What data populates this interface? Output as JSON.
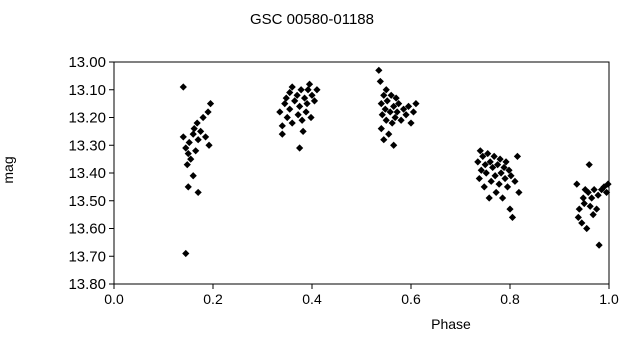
{
  "chart_data": {
    "type": "scatter",
    "title": "GSC 00580-01188",
    "xlabel": "Phase",
    "ylabel": "mag",
    "xlim": [
      0.0,
      1.0
    ],
    "ylim": [
      13.8,
      13.0
    ],
    "y_inverted": true,
    "grid": false,
    "legend": "none",
    "x_ticks": [
      "0.0",
      "0.2",
      "0.4",
      "0.6",
      "0.8",
      "1.0"
    ],
    "y_ticks": [
      "13.00",
      "13.10",
      "13.20",
      "13.30",
      "13.40",
      "13.50",
      "13.60",
      "13.70",
      "13.80"
    ],
    "marker_color": "#000000",
    "series": [
      {
        "points": [
          [
            0.14,
            13.09
          ],
          [
            0.14,
            13.27
          ],
          [
            0.145,
            13.31
          ],
          [
            0.15,
            13.33
          ],
          [
            0.148,
            13.37
          ],
          [
            0.152,
            13.29
          ],
          [
            0.155,
            13.35
          ],
          [
            0.16,
            13.26
          ],
          [
            0.165,
            13.32
          ],
          [
            0.162,
            13.24
          ],
          [
            0.17,
            13.28
          ],
          [
            0.168,
            13.22
          ],
          [
            0.175,
            13.25
          ],
          [
            0.18,
            13.2
          ],
          [
            0.185,
            13.27
          ],
          [
            0.19,
            13.18
          ],
          [
            0.195,
            13.15
          ],
          [
            0.192,
            13.3
          ],
          [
            0.16,
            13.41
          ],
          [
            0.15,
            13.45
          ],
          [
            0.17,
            13.47
          ],
          [
            0.145,
            13.69
          ],
          [
            0.335,
            13.18
          ],
          [
            0.34,
            13.23
          ],
          [
            0.34,
            13.26
          ],
          [
            0.345,
            13.15
          ],
          [
            0.348,
            13.13
          ],
          [
            0.35,
            13.2
          ],
          [
            0.355,
            13.11
          ],
          [
            0.355,
            13.17
          ],
          [
            0.36,
            13.09
          ],
          [
            0.36,
            13.22
          ],
          [
            0.365,
            13.14
          ],
          [
            0.37,
            13.12
          ],
          [
            0.372,
            13.19
          ],
          [
            0.375,
            13.16
          ],
          [
            0.378,
            13.1
          ],
          [
            0.38,
            13.21
          ],
          [
            0.382,
            13.25
          ],
          [
            0.385,
            13.13
          ],
          [
            0.388,
            13.18
          ],
          [
            0.39,
            13.15
          ],
          [
            0.392,
            13.1
          ],
          [
            0.395,
            13.08
          ],
          [
            0.398,
            13.2
          ],
          [
            0.4,
            13.12
          ],
          [
            0.405,
            13.14
          ],
          [
            0.41,
            13.1
          ],
          [
            0.375,
            13.31
          ],
          [
            0.535,
            13.03
          ],
          [
            0.538,
            13.07
          ],
          [
            0.54,
            13.15
          ],
          [
            0.54,
            13.24
          ],
          [
            0.542,
            13.19
          ],
          [
            0.545,
            13.12
          ],
          [
            0.545,
            13.28
          ],
          [
            0.548,
            13.17
          ],
          [
            0.55,
            13.1
          ],
          [
            0.55,
            13.21
          ],
          [
            0.552,
            13.14
          ],
          [
            0.555,
            13.26
          ],
          [
            0.558,
            13.18
          ],
          [
            0.56,
            13.12
          ],
          [
            0.562,
            13.22
          ],
          [
            0.565,
            13.16
          ],
          [
            0.568,
            13.2
          ],
          [
            0.57,
            13.13
          ],
          [
            0.572,
            13.18
          ],
          [
            0.575,
            13.15
          ],
          [
            0.58,
            13.21
          ],
          [
            0.585,
            13.17
          ],
          [
            0.59,
            13.19
          ],
          [
            0.595,
            13.16
          ],
          [
            0.6,
            13.22
          ],
          [
            0.605,
            13.18
          ],
          [
            0.61,
            13.15
          ],
          [
            0.565,
            13.3
          ],
          [
            0.735,
            13.36
          ],
          [
            0.738,
            13.42
          ],
          [
            0.74,
            13.32
          ],
          [
            0.742,
            13.39
          ],
          [
            0.745,
            13.34
          ],
          [
            0.748,
            13.45
          ],
          [
            0.75,
            13.37
          ],
          [
            0.752,
            13.4
          ],
          [
            0.755,
            13.33
          ],
          [
            0.758,
            13.49
          ],
          [
            0.76,
            13.36
          ],
          [
            0.762,
            13.43
          ],
          [
            0.765,
            13.38
          ],
          [
            0.768,
            13.34
          ],
          [
            0.77,
            13.41
          ],
          [
            0.772,
            13.47
          ],
          [
            0.775,
            13.37
          ],
          [
            0.778,
            13.44
          ],
          [
            0.78,
            13.35
          ],
          [
            0.782,
            13.4
          ],
          [
            0.785,
            13.49
          ],
          [
            0.788,
            13.38
          ],
          [
            0.79,
            13.42
          ],
          [
            0.792,
            13.36
          ],
          [
            0.795,
            13.45
          ],
          [
            0.798,
            13.39
          ],
          [
            0.8,
            13.53
          ],
          [
            0.802,
            13.41
          ],
          [
            0.805,
            13.56
          ],
          [
            0.81,
            13.43
          ],
          [
            0.815,
            13.34
          ],
          [
            0.818,
            13.47
          ],
          [
            0.935,
            13.44
          ],
          [
            0.938,
            13.56
          ],
          [
            0.94,
            13.53
          ],
          [
            0.945,
            13.58
          ],
          [
            0.948,
            13.49
          ],
          [
            0.95,
            13.51
          ],
          [
            0.952,
            13.46
          ],
          [
            0.955,
            13.6
          ],
          [
            0.958,
            13.47
          ],
          [
            0.96,
            13.37
          ],
          [
            0.962,
            13.52
          ],
          [
            0.965,
            13.49
          ],
          [
            0.968,
            13.55
          ],
          [
            0.97,
            13.46
          ],
          [
            0.975,
            13.53
          ],
          [
            0.978,
            13.48
          ],
          [
            0.98,
            13.66
          ],
          [
            0.985,
            13.46
          ],
          [
            0.99,
            13.45
          ],
          [
            0.995,
            13.47
          ],
          [
            0.998,
            13.44
          ]
        ]
      }
    ]
  }
}
